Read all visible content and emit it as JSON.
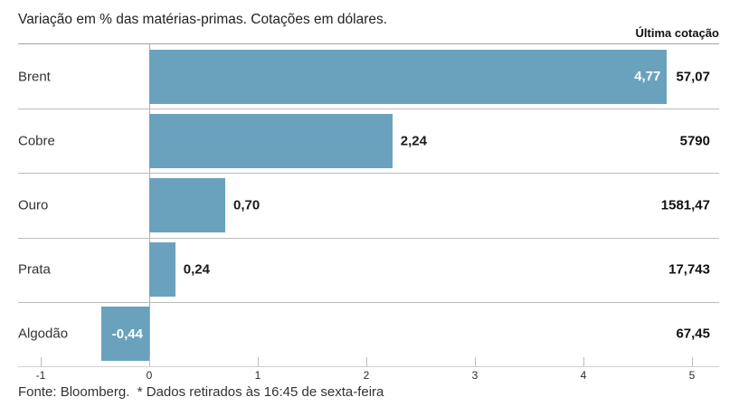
{
  "header": {
    "title": "Variação em % das matérias-primas. Cotações em dólares.",
    "last_quote_label": "Última cotação"
  },
  "chart_data": {
    "type": "bar",
    "orientation": "horizontal",
    "title": "Variação em % das matérias-primas. Cotações em dólares.",
    "categories": [
      "Brent",
      "Cobre",
      "Ouro",
      "Prata",
      "Algodão"
    ],
    "values": [
      4.77,
      2.24,
      0.7,
      0.24,
      -0.44
    ],
    "value_labels": [
      "4,77",
      "2,24",
      "0,70",
      "0,24",
      "-0,44"
    ],
    "value_label_position": [
      "inside",
      "outside",
      "outside",
      "outside",
      "inside"
    ],
    "last_quote_column_label": "Última cotação",
    "last_quotes": [
      "57,07",
      "5790",
      "1581,47",
      "17,743",
      "67,45"
    ],
    "x_ticks": [
      -1,
      0,
      1,
      2,
      3,
      4,
      5
    ],
    "xlim": [
      -1.21,
      5.25
    ],
    "bar_color": "#6aa2be",
    "grid": "row-separators",
    "legend": "none"
  },
  "footer": {
    "text": "Fonte: Bloomberg.  * Dados retirados às 16:45 de sexta-feira"
  }
}
